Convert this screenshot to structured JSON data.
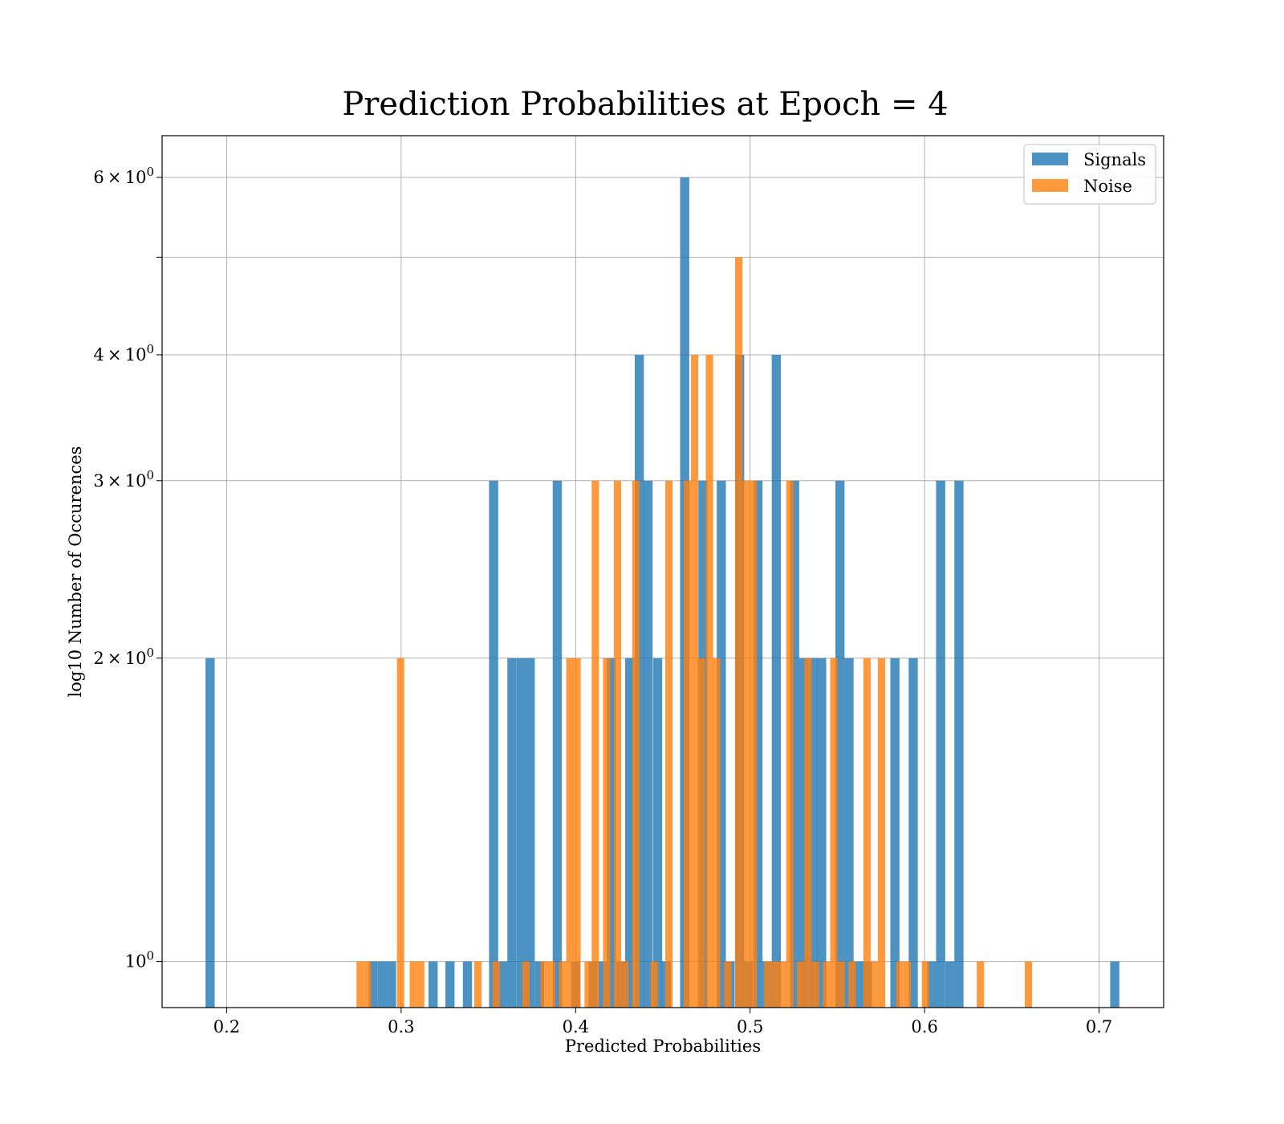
{
  "chart_data": {
    "type": "bar",
    "title": "Prediction Probabilities at Epoch = 4",
    "xlabel": "Predicted Probabilities",
    "ylabel": "log10 Number of Occurences",
    "yscale": "log",
    "xlim": [
      0.163,
      0.737
    ],
    "ylim": [
      0.9,
      6.6
    ],
    "grid": true,
    "legend_position": "top-right",
    "x_ticks": [
      {
        "value": 0.2,
        "label": "0.2"
      },
      {
        "value": 0.3,
        "label": "0.3"
      },
      {
        "value": 0.4,
        "label": "0.4"
      },
      {
        "value": 0.5,
        "label": "0.5"
      },
      {
        "value": 0.6,
        "label": "0.6"
      },
      {
        "value": 0.7,
        "label": "0.7"
      }
    ],
    "y_ticks": [
      {
        "value": 1,
        "base": "10",
        "exp": "0",
        "label": "10^0"
      },
      {
        "value": 2,
        "mant": "2",
        "base": "10",
        "exp": "0",
        "label": "2×10^0"
      },
      {
        "value": 3,
        "mant": "3",
        "base": "10",
        "exp": "0",
        "label": "3×10^0"
      },
      {
        "value": 4,
        "mant": "4",
        "base": "10",
        "exp": "0",
        "label": "4×10^0"
      },
      {
        "value": 5,
        "label": ""
      },
      {
        "value": 6,
        "mant": "6",
        "base": "10",
        "exp": "0",
        "label": "6×10^0"
      }
    ],
    "series": [
      {
        "name": "Signals",
        "color": "#1f77b4",
        "bin_width": 0.00525,
        "bins": [
          [
            0.1905,
            2
          ],
          [
            0.284,
            1
          ],
          [
            0.2893,
            1
          ],
          [
            0.2945,
            1
          ],
          [
            0.3183,
            1
          ],
          [
            0.328,
            1
          ],
          [
            0.338,
            1
          ],
          [
            0.353,
            3
          ],
          [
            0.3583,
            1
          ],
          [
            0.3635,
            2
          ],
          [
            0.3688,
            2
          ],
          [
            0.374,
            2
          ],
          [
            0.3793,
            1
          ],
          [
            0.3895,
            3
          ],
          [
            0.4,
            1
          ],
          [
            0.41,
            1
          ],
          [
            0.4155,
            1
          ],
          [
            0.4205,
            2
          ],
          [
            0.426,
            1
          ],
          [
            0.431,
            2
          ],
          [
            0.4365,
            4
          ],
          [
            0.4415,
            3
          ],
          [
            0.447,
            2
          ],
          [
            0.452,
            1
          ],
          [
            0.4625,
            6
          ],
          [
            0.473,
            3
          ],
          [
            0.4835,
            3
          ],
          [
            0.4885,
            1
          ],
          [
            0.494,
            4
          ],
          [
            0.499,
            1
          ],
          [
            0.5045,
            3
          ],
          [
            0.5097,
            1
          ],
          [
            0.515,
            4
          ],
          [
            0.5255,
            3
          ],
          [
            0.5307,
            2
          ],
          [
            0.536,
            2
          ],
          [
            0.541,
            2
          ],
          [
            0.5515,
            3
          ],
          [
            0.5567,
            2
          ],
          [
            0.562,
            1
          ],
          [
            0.5672,
            1
          ],
          [
            0.583,
            2
          ],
          [
            0.5935,
            2
          ],
          [
            0.604,
            1
          ],
          [
            0.6092,
            3
          ],
          [
            0.6145,
            1
          ],
          [
            0.6197,
            3
          ],
          [
            0.709,
            1
          ]
        ]
      },
      {
        "name": "Noise",
        "color": "#ff7f0e",
        "bin_width": 0.0042,
        "bins": [
          [
            0.2765,
            1
          ],
          [
            0.2807,
            1
          ],
          [
            0.2997,
            2
          ],
          [
            0.307,
            1
          ],
          [
            0.3112,
            1
          ],
          [
            0.344,
            1
          ],
          [
            0.3545,
            1
          ],
          [
            0.3715,
            1
          ],
          [
            0.382,
            1
          ],
          [
            0.3862,
            1
          ],
          [
            0.3925,
            1
          ],
          [
            0.3967,
            2
          ],
          [
            0.4008,
            2
          ],
          [
            0.4072,
            1
          ],
          [
            0.4113,
            3
          ],
          [
            0.4178,
            2
          ],
          [
            0.424,
            3
          ],
          [
            0.4282,
            1
          ],
          [
            0.4345,
            3
          ],
          [
            0.445,
            1
          ],
          [
            0.4535,
            3
          ],
          [
            0.464,
            3
          ],
          [
            0.4682,
            4
          ],
          [
            0.472,
            2
          ],
          [
            0.4767,
            4
          ],
          [
            0.4808,
            2
          ],
          [
            0.4872,
            1
          ],
          [
            0.4935,
            5
          ],
          [
            0.4977,
            3
          ],
          [
            0.5018,
            3
          ],
          [
            0.5102,
            1
          ],
          [
            0.5145,
            1
          ],
          [
            0.5187,
            1
          ],
          [
            0.5228,
            3
          ],
          [
            0.529,
            1
          ],
          [
            0.5332,
            2
          ],
          [
            0.5375,
            1
          ],
          [
            0.5438,
            1
          ],
          [
            0.548,
            2
          ],
          [
            0.5522,
            1
          ],
          [
            0.5585,
            1
          ],
          [
            0.567,
            2
          ],
          [
            0.5712,
            1
          ],
          [
            0.5753,
            2
          ],
          [
            0.5858,
            1
          ],
          [
            0.59,
            1
          ],
          [
            0.6005,
            1
          ],
          [
            0.632,
            1
          ],
          [
            0.6595,
            1
          ]
        ]
      }
    ]
  }
}
